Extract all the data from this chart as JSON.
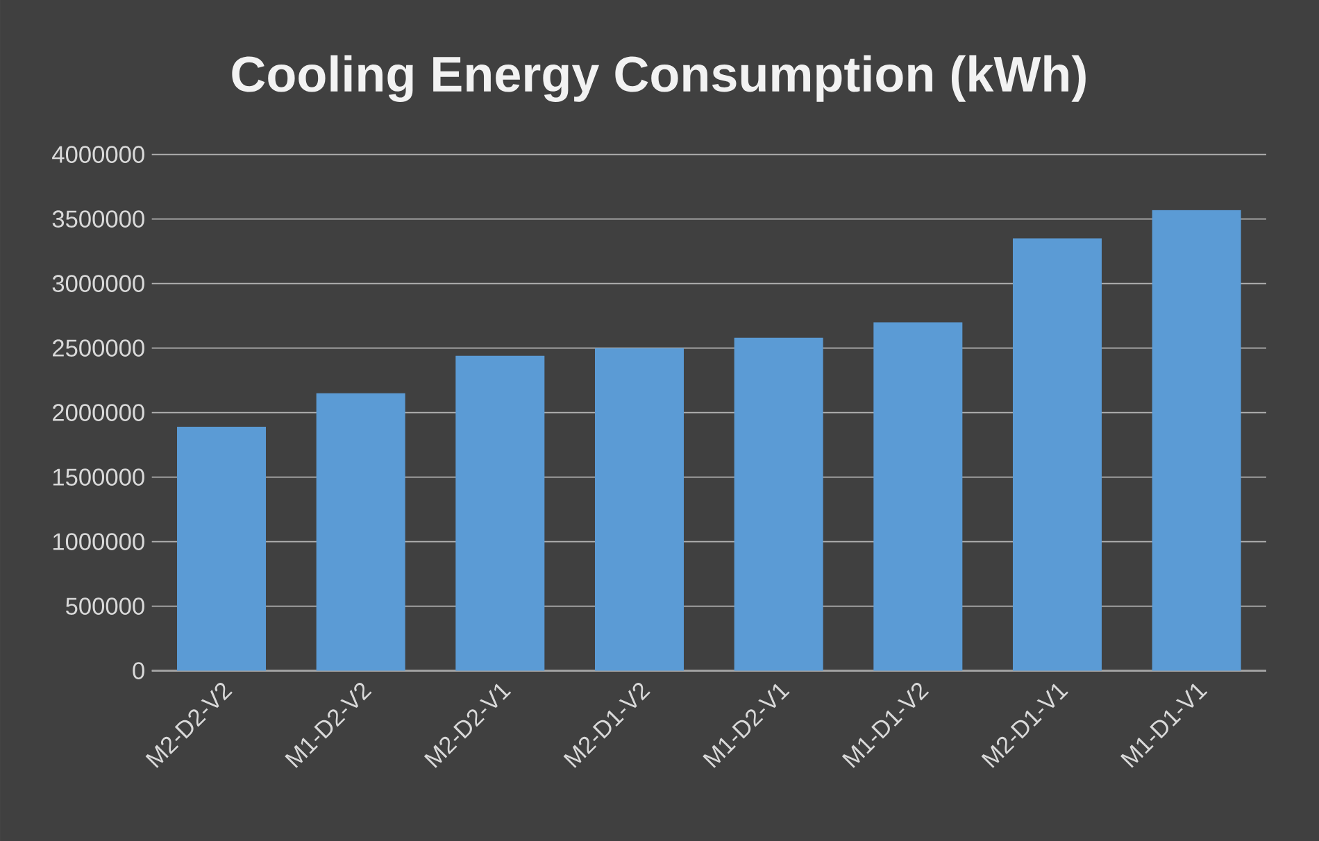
{
  "chart_data": {
    "type": "bar",
    "title": "Cooling Energy Consumption (kWh)",
    "categories": [
      "M2-D2-V2",
      "M1-D2-V2",
      "M2-D2-V1",
      "M2-D1-V2",
      "M1-D2-V1",
      "M1-D1-V2",
      "M2-D1-V1",
      "M1-D1-V1"
    ],
    "values": [
      1890000,
      2150000,
      2440000,
      2500000,
      2580000,
      2700000,
      3350000,
      3570000
    ],
    "color": "#5b9bd5",
    "ylim": [
      0,
      4000000
    ],
    "yticks": [
      0,
      500000,
      1000000,
      1500000,
      2000000,
      2500000,
      3000000,
      3500000,
      4000000
    ],
    "grid": "y"
  }
}
